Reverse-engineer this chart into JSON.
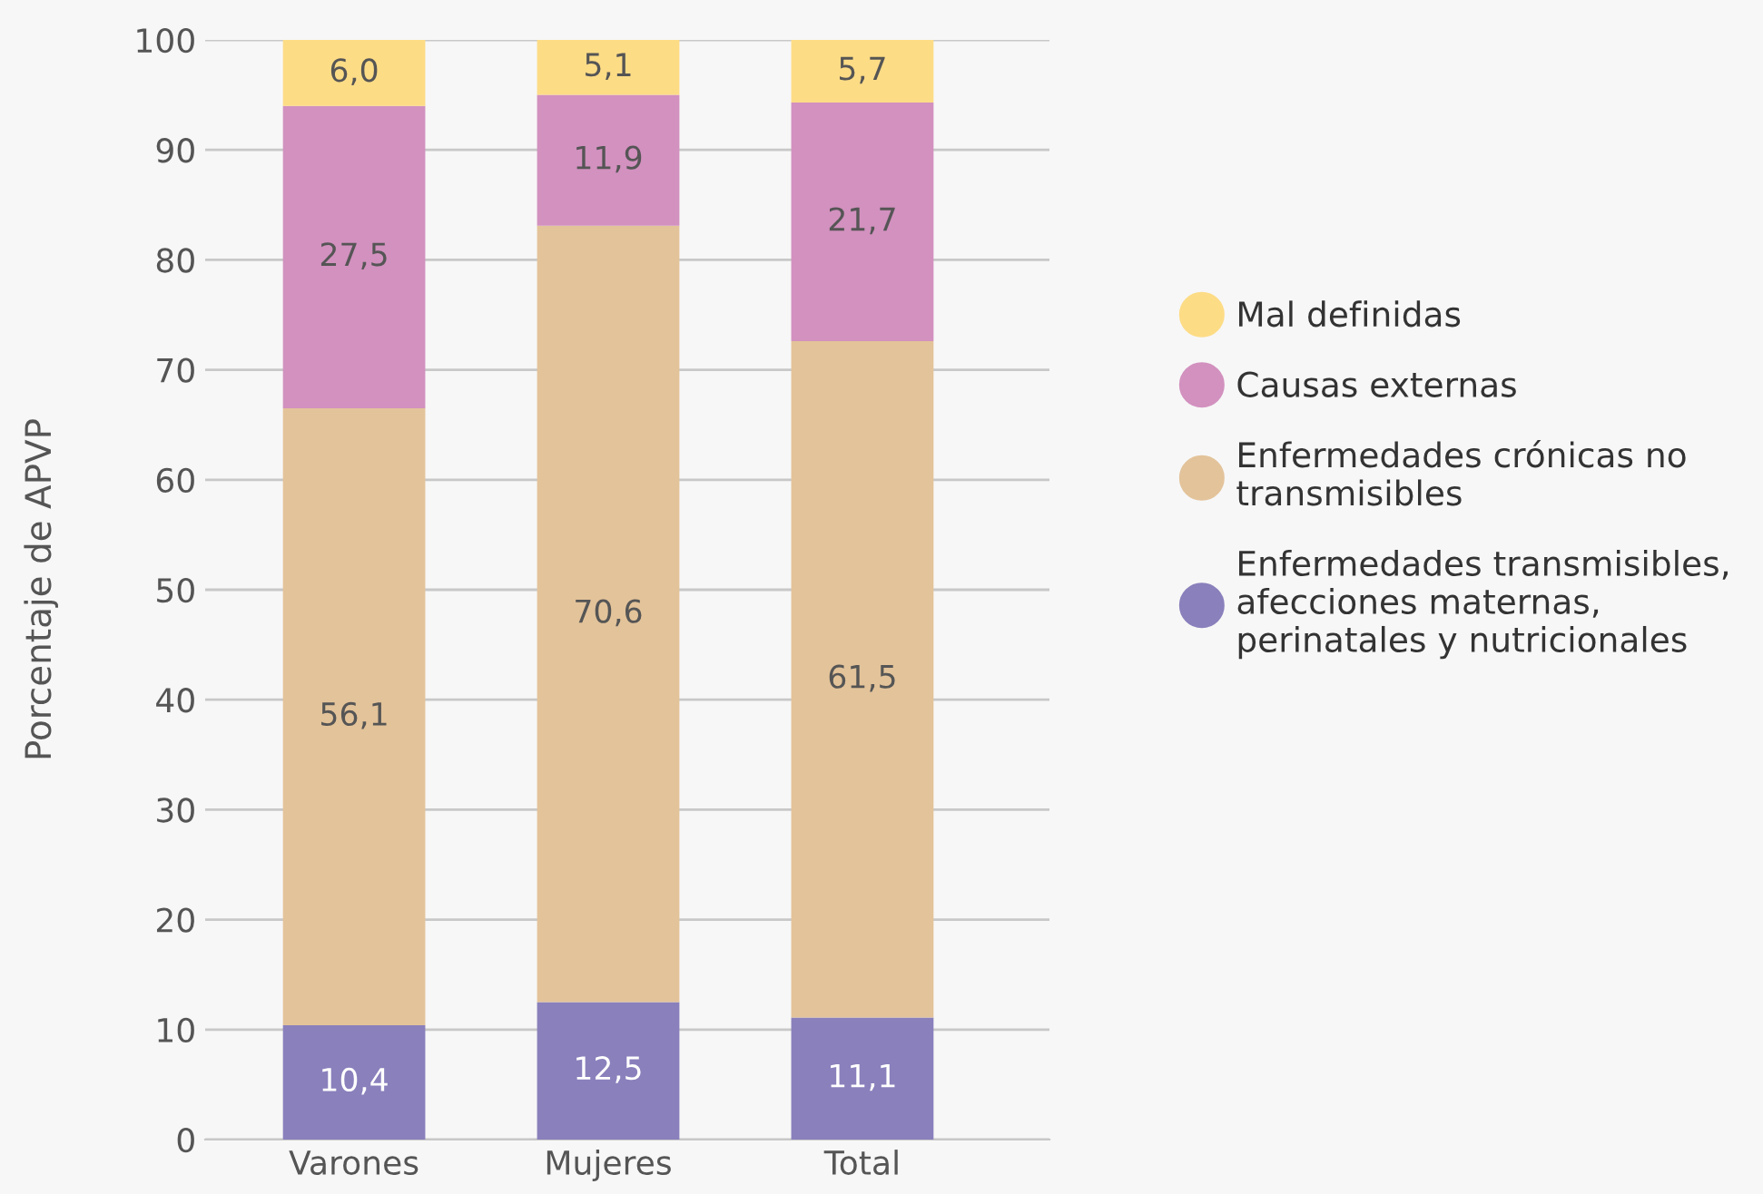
{
  "chart_data": {
    "type": "bar",
    "stacked": true,
    "ylabel": "Porcentaje de APVP",
    "categories": [
      "Varones",
      "Mujeres",
      "Total"
    ],
    "ylim": [
      0,
      100
    ],
    "yticks": [
      0,
      10,
      20,
      30,
      40,
      50,
      60,
      70,
      80,
      90,
      100
    ],
    "grid": "y",
    "legend": "right",
    "series": [
      {
        "name": "Enfermedades transmisibles,\nafecciones maternas,\nperinatales y nutricionales",
        "color": "#8a80bc",
        "values": [
          10.4,
          12.5,
          11.1
        ],
        "value_labels": [
          "10,4",
          "12,5",
          "11,1"
        ]
      },
      {
        "name": "Enfermedades crónicas no\ntransmisibles",
        "color": "#e3c39a",
        "values": [
          56.1,
          70.6,
          61.5
        ],
        "value_labels": [
          "56,1",
          "70,6",
          "61,5"
        ]
      },
      {
        "name": "Causas externas",
        "color": "#d291bf",
        "values": [
          27.5,
          11.9,
          21.7
        ],
        "value_labels": [
          "27,5",
          "11,9",
          "21,7"
        ]
      },
      {
        "name": "Mal definidas",
        "color": "#fddc86",
        "values": [
          6.0,
          5.1,
          5.7
        ],
        "value_labels": [
          "6,0",
          "5,1",
          "5,7"
        ]
      }
    ]
  }
}
